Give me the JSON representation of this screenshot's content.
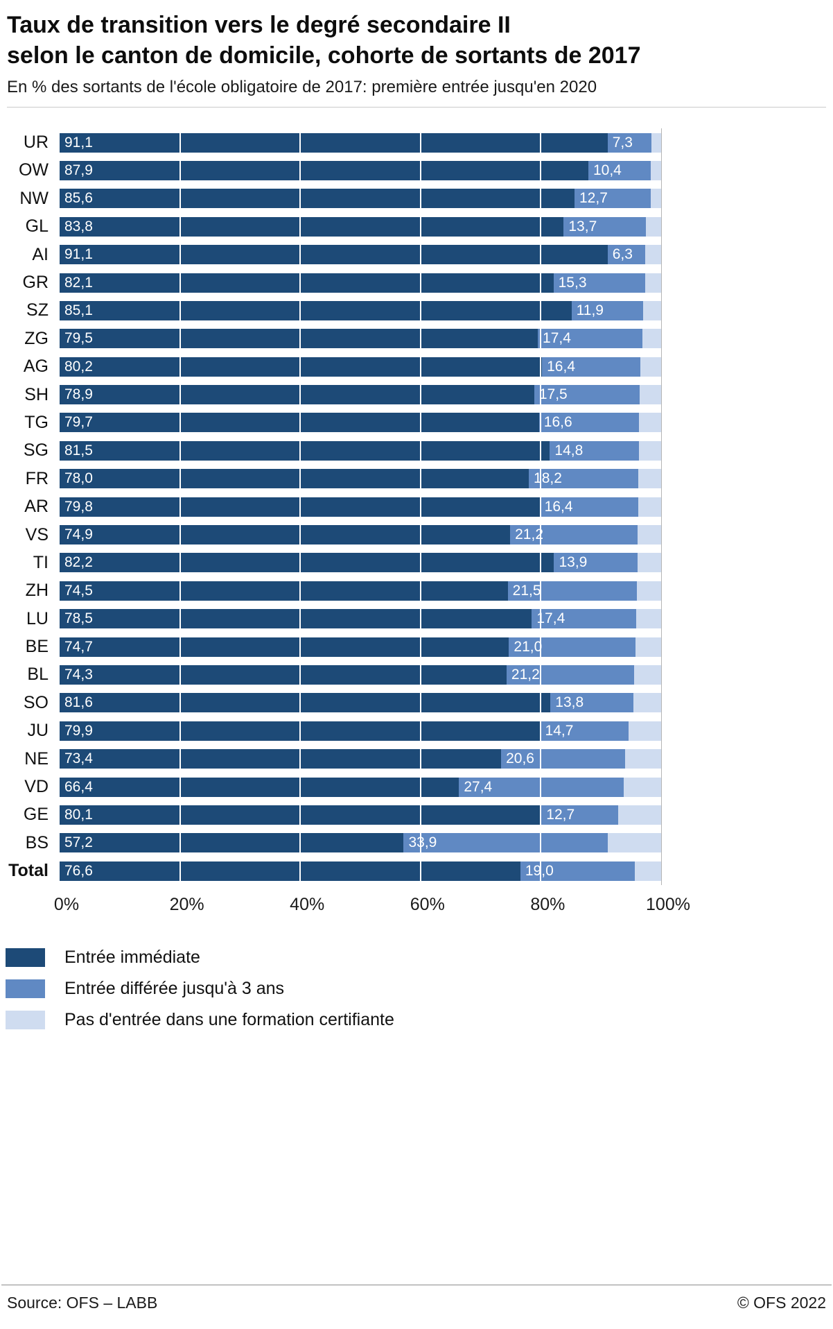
{
  "title_line1": "Taux de transition vers le degré secondaire II",
  "title_line2": "selon le canton de domicile, cohorte de sortants de 2017",
  "subtitle": "En % des sortants de l'école obligatoire de 2017: première entrée jusqu'en 2020",
  "chart_data": {
    "type": "bar",
    "orientation": "horizontal",
    "stacked": true,
    "title": "Taux de transition vers le degré secondaire II selon le canton de domicile, cohorte de sortants de 2017",
    "xlabel": "",
    "ylabel": "",
    "xlim": [
      0,
      100
    ],
    "xticks": [
      "0%",
      "20%",
      "40%",
      "60%",
      "80%",
      "100%"
    ],
    "grid": "vertical",
    "categories": [
      "UR",
      "OW",
      "NW",
      "GL",
      "AI",
      "GR",
      "SZ",
      "ZG",
      "AG",
      "SH",
      "TG",
      "SG",
      "FR",
      "AR",
      "VS",
      "TI",
      "ZH",
      "LU",
      "BE",
      "BL",
      "SO",
      "JU",
      "NE",
      "VD",
      "GE",
      "BS",
      "Total"
    ],
    "series": [
      {
        "name": "Entrée immédiate",
        "color": "#1d4a77",
        "values": [
          91.1,
          87.9,
          85.6,
          83.8,
          91.1,
          82.1,
          85.1,
          79.5,
          80.2,
          78.9,
          79.7,
          81.5,
          78.0,
          79.8,
          74.9,
          82.2,
          74.5,
          78.5,
          74.7,
          74.3,
          81.6,
          79.9,
          73.4,
          66.4,
          80.1,
          57.2,
          76.6
        ]
      },
      {
        "name": "Entrée différée jusqu'à 3 ans",
        "color": "#6089c3",
        "values": [
          7.3,
          10.4,
          12.7,
          13.7,
          6.3,
          15.3,
          11.9,
          17.4,
          16.4,
          17.5,
          16.6,
          14.8,
          18.2,
          16.4,
          21.2,
          13.9,
          21.5,
          17.4,
          21.0,
          21.2,
          13.8,
          14.7,
          20.6,
          27.4,
          12.7,
          33.9,
          19.0
        ]
      },
      {
        "name": "Pas d'entrée dans une formation certifiante",
        "color": "#cfdcf0",
        "remainder_to_100": true,
        "values": null
      }
    ],
    "value_label_decimal_separator": ","
  },
  "footer": {
    "source": "Source: OFS – LABB",
    "copyright": "© OFS 2022"
  }
}
